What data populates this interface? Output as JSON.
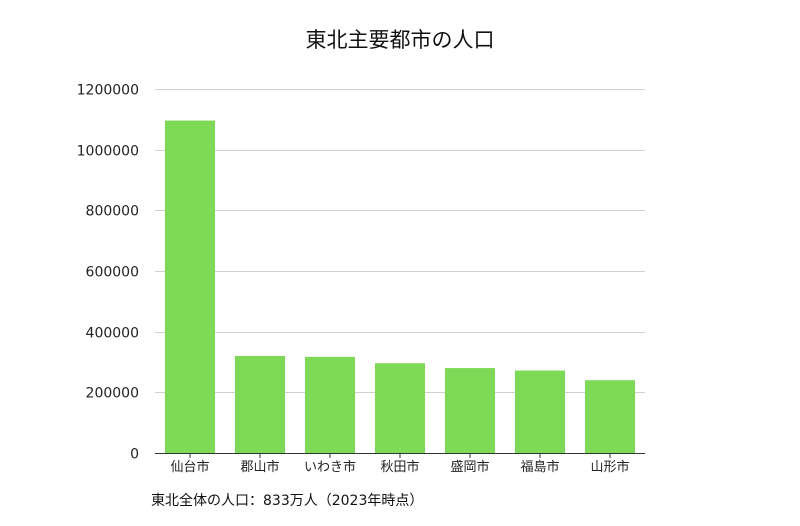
{
  "chart_data": {
    "type": "bar",
    "title": "東北主要都市の人口",
    "categories": [
      "仙台市",
      "郡山市",
      "いわき市",
      "秋田市",
      "盛岡市",
      "福島市",
      "山形市"
    ],
    "values": [
      1096000,
      320000,
      317000,
      296000,
      280000,
      272000,
      240000
    ],
    "ylim": [
      0,
      1200000
    ],
    "yticks": [
      "0",
      "200000",
      "400000",
      "600000",
      "800000",
      "1000000",
      "1200000"
    ],
    "xlabel": "",
    "ylabel": "",
    "grid": true,
    "legend": "none",
    "bar_color": "#7ed957",
    "annotation": "東北全体の人口：833万人（2023年時点）"
  }
}
